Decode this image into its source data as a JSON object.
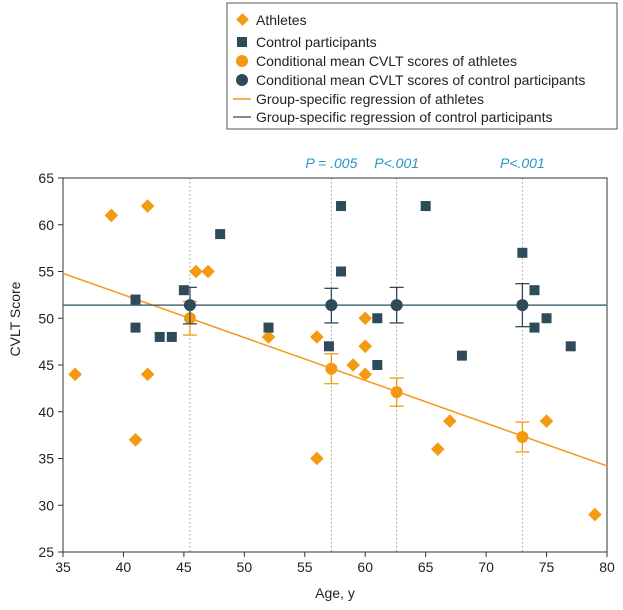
{
  "colors": {
    "athletes": "#f39a12",
    "controls": "#2f4b5a",
    "regression_athletes": "#f39a12",
    "regression_controls": "#4d6a78",
    "pvalue": "#2a95c8",
    "axis": "#333333",
    "grid": "#999999"
  },
  "legend": {
    "items": [
      {
        "label": "Athletes",
        "marker": "diamond",
        "color": "#f39a12"
      },
      {
        "label": "Control participants",
        "marker": "square",
        "color": "#2f4b5a"
      },
      {
        "label": "Conditional mean CVLT scores of athletes",
        "marker": "circle",
        "color": "#f39a12"
      },
      {
        "label": "Conditional mean CVLT scores of control participants",
        "marker": "circle",
        "color": "#2f4b5a"
      },
      {
        "label": "Group-specific regression of athletes",
        "marker": "line",
        "color": "#f39a12"
      },
      {
        "label": "Group-specific regression of control participants",
        "marker": "line",
        "color": "#4d6a78"
      }
    ]
  },
  "chart_data": {
    "type": "scatter",
    "xlabel": "Age, y",
    "ylabel": "CVLT Score",
    "xlim": [
      35,
      80
    ],
    "ylim": [
      25,
      65
    ],
    "xticks": [
      35,
      40,
      45,
      50,
      55,
      60,
      65,
      70,
      75,
      80
    ],
    "yticks": [
      25,
      30,
      35,
      40,
      45,
      50,
      55,
      60,
      65
    ],
    "grid": "vertical dotted lines at conditional ages",
    "vlines": [
      45.5,
      57.2,
      62.6,
      73
    ],
    "pvalues": [
      {
        "x": 57.2,
        "label": "P = .005"
      },
      {
        "x": 62.6,
        "label": "P<.001"
      },
      {
        "x": 73,
        "label": "P<.001"
      }
    ],
    "series": [
      {
        "name": "Athletes",
        "marker": "diamond",
        "points": [
          [
            36,
            44
          ],
          [
            39,
            61
          ],
          [
            41,
            37
          ],
          [
            42,
            62
          ],
          [
            42,
            44
          ],
          [
            46,
            55
          ],
          [
            47,
            55
          ],
          [
            52,
            48
          ],
          [
            56,
            48
          ],
          [
            56,
            35
          ],
          [
            59,
            45
          ],
          [
            60,
            50
          ],
          [
            60,
            47
          ],
          [
            60,
            44
          ],
          [
            66,
            36
          ],
          [
            67,
            39
          ],
          [
            75,
            39
          ],
          [
            79,
            29
          ]
        ]
      },
      {
        "name": "Control participants",
        "marker": "square",
        "points": [
          [
            41,
            52
          ],
          [
            41,
            49
          ],
          [
            43,
            48
          ],
          [
            44,
            48
          ],
          [
            45,
            53
          ],
          [
            48,
            59
          ],
          [
            52,
            49
          ],
          [
            57,
            47
          ],
          [
            58,
            62
          ],
          [
            58,
            55
          ],
          [
            61,
            50
          ],
          [
            61,
            45
          ],
          [
            65,
            62
          ],
          [
            68,
            46
          ],
          [
            73,
            57
          ],
          [
            74,
            53
          ],
          [
            74,
            49
          ],
          [
            75,
            50
          ],
          [
            77,
            47
          ]
        ]
      },
      {
        "name": "Conditional mean CVLT scores of athletes",
        "marker": "circle",
        "points": [
          {
            "x": 45.5,
            "y": 50,
            "lo": 48.2,
            "hi": 51.8
          },
          {
            "x": 57.2,
            "y": 44.6,
            "lo": 43,
            "hi": 46.2
          },
          {
            "x": 62.6,
            "y": 42.1,
            "lo": 40.6,
            "hi": 43.6
          },
          {
            "x": 73,
            "y": 37.3,
            "lo": 35.7,
            "hi": 38.9
          }
        ]
      },
      {
        "name": "Conditional mean CVLT scores of control participants",
        "marker": "circle",
        "points": [
          {
            "x": 45.5,
            "y": 51.4,
            "lo": 49.4,
            "hi": 53.3
          },
          {
            "x": 57.2,
            "y": 51.4,
            "lo": 49.5,
            "hi": 53.2
          },
          {
            "x": 62.6,
            "y": 51.4,
            "lo": 49.5,
            "hi": 53.3
          },
          {
            "x": 73,
            "y": 51.4,
            "lo": 49.1,
            "hi": 53.7
          }
        ]
      },
      {
        "name": "Group-specific regression of athletes",
        "marker": "line",
        "line": [
          [
            35,
            54.8
          ],
          [
            80,
            34.2
          ]
        ]
      },
      {
        "name": "Group-specific regression of control participants",
        "marker": "line",
        "line": [
          [
            35,
            51.4
          ],
          [
            80,
            51.4
          ]
        ]
      }
    ]
  }
}
